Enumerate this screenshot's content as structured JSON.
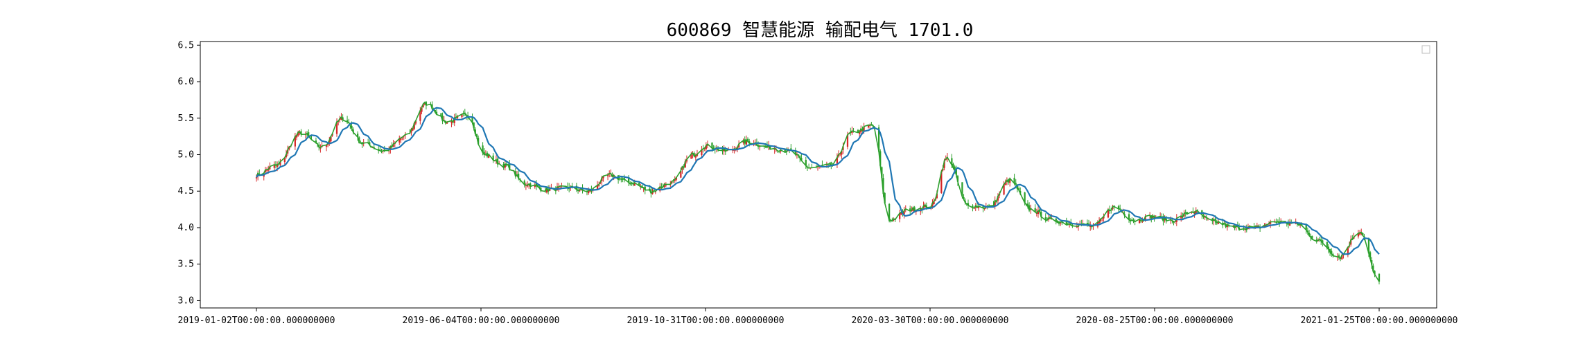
{
  "chart_data": {
    "type": "candlestick",
    "title": "600869 智慧能源 输配电气 1701.0",
    "xlabel": "",
    "ylabel": "",
    "ylim": [
      2.9,
      6.55
    ],
    "yticks": [
      "3.0",
      "3.5",
      "4.0",
      "4.5",
      "5.0",
      "5.5",
      "6.0",
      "6.5"
    ],
    "xticks": [
      "2019-01-02T00:00:00.000000000",
      "2019-06-04T00:00:00.000000000",
      "2019-10-31T00:00:00.000000000",
      "2020-03-30T00:00:00.000000000",
      "2020-08-25T00:00:00.000000000",
      "2021-01-25T00:00:00.000000000"
    ],
    "grid": false,
    "legend": "top-right (empty)",
    "colors": {
      "up": "#d62728",
      "down": "#2ca02c",
      "close_line": "#2ca02c",
      "moving_average": "#1f77b4"
    },
    "close_series": [
      [
        "2019-01-02",
        4.72
      ],
      [
        "2019-01-15",
        4.85
      ],
      [
        "2019-02-01",
        5.3
      ],
      [
        "2019-02-15",
        5.1
      ],
      [
        "2019-03-01",
        5.5
      ],
      [
        "2019-03-15",
        5.15
      ],
      [
        "2019-03-29",
        5.05
      ],
      [
        "2019-04-12",
        5.25
      ],
      [
        "2019-04-26",
        5.7
      ],
      [
        "2019-05-10",
        5.45
      ],
      [
        "2019-05-24",
        5.55
      ],
      [
        "2019-06-04",
        5.0
      ],
      [
        "2019-06-18",
        4.85
      ],
      [
        "2019-07-02",
        4.6
      ],
      [
        "2019-07-16",
        4.52
      ],
      [
        "2019-07-30",
        4.55
      ],
      [
        "2019-08-13",
        4.5
      ],
      [
        "2019-08-27",
        4.72
      ],
      [
        "2019-09-10",
        4.62
      ],
      [
        "2019-09-24",
        4.5
      ],
      [
        "2019-10-08",
        4.62
      ],
      [
        "2019-10-22",
        5.0
      ],
      [
        "2019-10-31",
        5.12
      ],
      [
        "2019-11-14",
        5.05
      ],
      [
        "2019-11-28",
        5.18
      ],
      [
        "2019-12-12",
        5.1
      ],
      [
        "2019-12-26",
        5.05
      ],
      [
        "2020-01-09",
        4.82
      ],
      [
        "2020-01-23",
        4.85
      ],
      [
        "2020-02-06",
        5.3
      ],
      [
        "2020-02-20",
        5.4
      ],
      [
        "2020-03-02",
        4.1
      ],
      [
        "2020-03-16",
        4.25
      ],
      [
        "2020-03-30",
        4.3
      ],
      [
        "2020-04-10",
        4.95
      ],
      [
        "2020-04-24",
        4.3
      ],
      [
        "2020-05-08",
        4.28
      ],
      [
        "2020-05-22",
        4.65
      ],
      [
        "2020-06-05",
        4.25
      ],
      [
        "2020-06-19",
        4.1
      ],
      [
        "2020-07-03",
        4.05
      ],
      [
        "2020-07-17",
        4.02
      ],
      [
        "2020-07-31",
        4.28
      ],
      [
        "2020-08-14",
        4.1
      ],
      [
        "2020-08-25",
        4.15
      ],
      [
        "2020-09-08",
        4.1
      ],
      [
        "2020-09-22",
        4.22
      ],
      [
        "2020-10-06",
        4.08
      ],
      [
        "2020-10-20",
        4.0
      ],
      [
        "2020-11-03",
        4.0
      ],
      [
        "2020-11-17",
        4.08
      ],
      [
        "2020-12-01",
        4.05
      ],
      [
        "2020-12-15",
        3.82
      ],
      [
        "2020-12-29",
        3.6
      ],
      [
        "2021-01-12",
        3.95
      ],
      [
        "2021-01-25",
        3.25
      ]
    ]
  }
}
